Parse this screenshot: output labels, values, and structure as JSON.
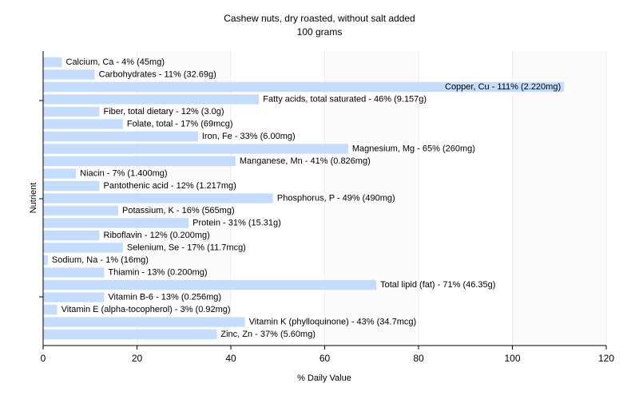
{
  "chart_data": {
    "type": "bar",
    "orientation": "horizontal",
    "title": "Cashew nuts, dry roasted, without salt added",
    "subtitle": "100 grams",
    "xlabel": "% Daily Value",
    "ylabel": "Nutrient",
    "xlim": [
      0,
      120
    ],
    "xticks": [
      "0",
      "20",
      "40",
      "60",
      "80",
      "100",
      "120"
    ],
    "grid": "vertical",
    "bar_color": "#c6dcfc",
    "categories": [
      "Calcium, Ca - 4% (45mg)",
      "Carbohydrates - 11% (32.69g)",
      "Copper, Cu - 111% (2.220mg)",
      "Fatty acids, total saturated - 46% (9.157g)",
      "Fiber, total dietary - 12% (3.0g)",
      "Folate, total - 17% (69mcg)",
      "Iron, Fe - 33% (6.00mg)",
      "Magnesium, Mg - 65% (260mg)",
      "Manganese, Mn - 41% (0.826mg)",
      "Niacin - 7% (1.400mg)",
      "Pantothenic acid - 12% (1.217mg)",
      "Phosphorus, P - 49% (490mg)",
      "Potassium, K - 16% (565mg)",
      "Protein - 31% (15.31g)",
      "Riboflavin - 12% (0.200mg)",
      "Selenium, Se - 17% (11.7mcg)",
      "Sodium, Na - 1% (16mg)",
      "Thiamin - 13% (0.200mg)",
      "Total lipid (fat) - 71% (46.35g)",
      "Vitamin B-6 - 13% (0.256mg)",
      "Vitamin E (alpha-tocopherol) - 3% (0.92mg)",
      "Vitamin K (phylloquinone) - 43% (34.7mcg)",
      "Zinc, Zn - 37% (5.60mg)"
    ],
    "values": [
      4,
      11,
      111,
      46,
      12,
      17,
      33,
      65,
      41,
      7,
      12,
      49,
      16,
      31,
      12,
      17,
      1,
      13,
      71,
      13,
      3,
      43,
      37
    ]
  }
}
